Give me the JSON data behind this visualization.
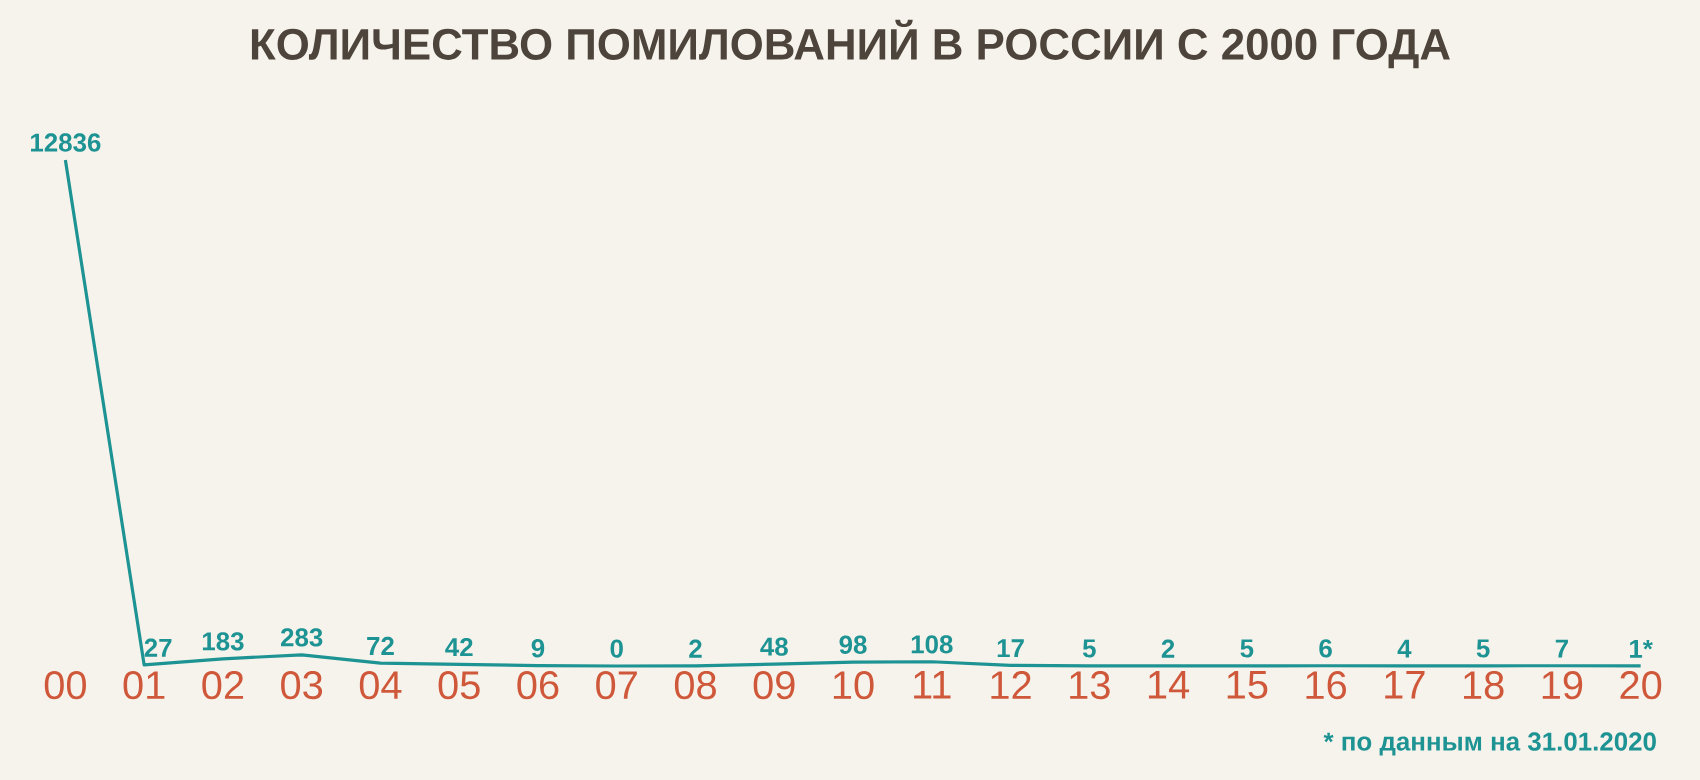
{
  "chart_data": {
    "type": "line",
    "title": "КОЛИЧЕСТВО ПОМИЛОВАНИЙ В РОССИИ С 2000 ГОДА",
    "categories": [
      "00",
      "01",
      "02",
      "03",
      "04",
      "05",
      "06",
      "07",
      "08",
      "09",
      "10",
      "11",
      "12",
      "13",
      "14",
      "15",
      "16",
      "17",
      "18",
      "19",
      "20"
    ],
    "values": [
      12836,
      27,
      183,
      283,
      72,
      42,
      9,
      0,
      2,
      48,
      98,
      108,
      17,
      5,
      2,
      5,
      6,
      4,
      5,
      7,
      1
    ],
    "value_labels": [
      "12836",
      "27",
      "183",
      "283",
      "72",
      "42",
      "9",
      "0",
      "2",
      "48",
      "98",
      "108",
      "17",
      "5",
      "2",
      "5",
      "6",
      "4",
      "5",
      "7",
      "1*"
    ],
    "color": "#1e9393",
    "annotations": [
      "* по данным на 31.01.2020"
    ]
  }
}
